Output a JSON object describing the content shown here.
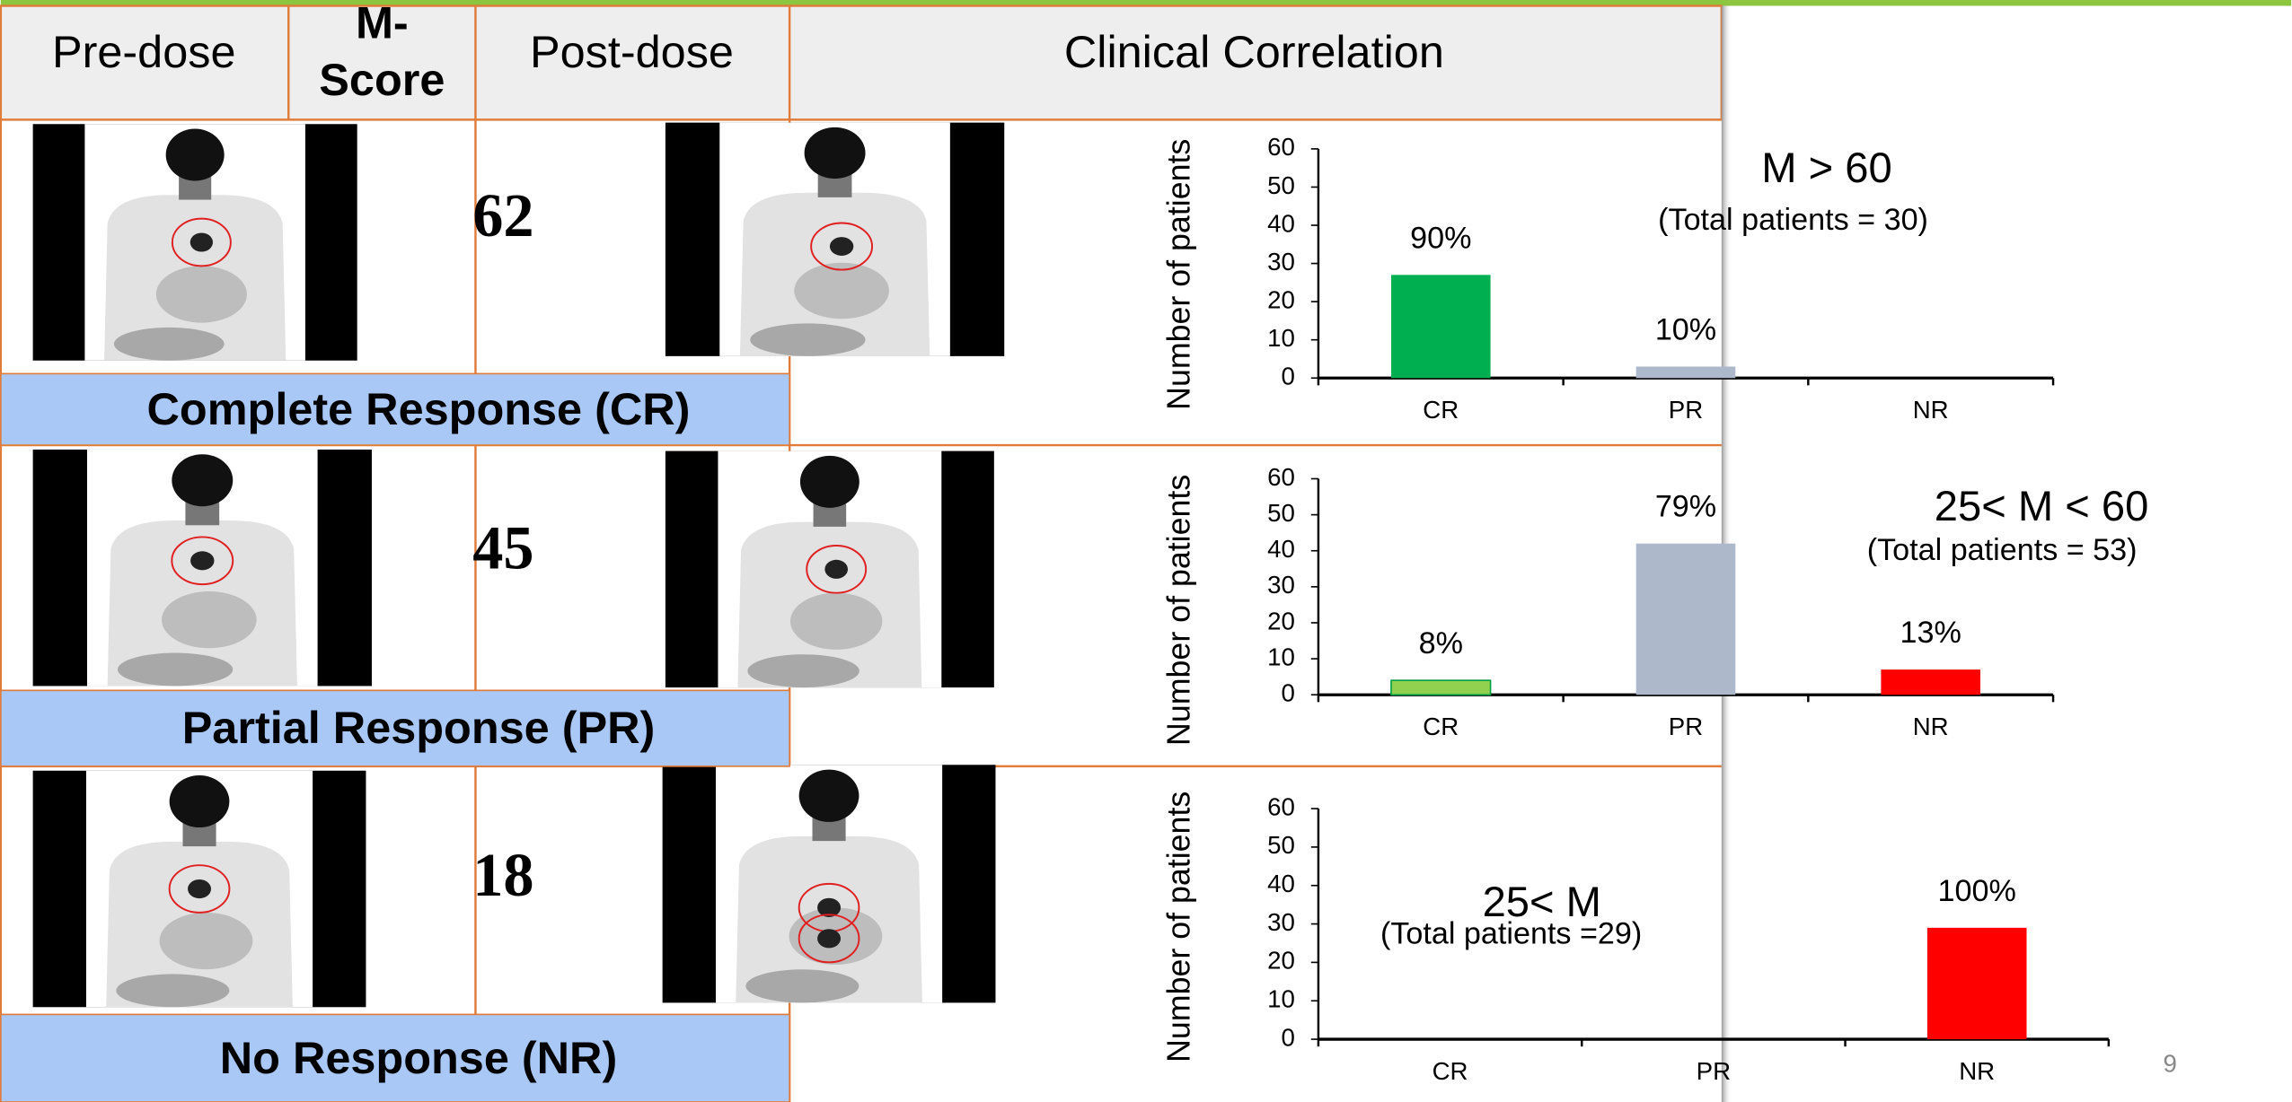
{
  "table": {
    "header": [
      "Pre-dose",
      [
        "M-",
        "Score"
      ],
      "Post-dose",
      "Clinical Correlation"
    ],
    "rows": [
      {
        "m_score": 62,
        "response": "Complete Response (CR)"
      },
      {
        "m_score": 45,
        "response": "Partial Response (PR)"
      },
      {
        "m_score": 18,
        "response": "No Response (NR)"
      }
    ]
  },
  "chart_data": [
    {
      "type": "bar",
      "y_label": "Number of patients",
      "annotation": "M > 60",
      "subannotation": "(Total patients = 30)",
      "categories": [
        "CR",
        "PR",
        "NR"
      ],
      "values": [
        27,
        3,
        0
      ],
      "value_labels": [
        "90%",
        "10%",
        null
      ],
      "colors": [
        "#00b050",
        "#adb9ca",
        "#ff0000"
      ],
      "ylim": [
        0,
        60
      ],
      "yticks": [
        0,
        10,
        20,
        30,
        40,
        50,
        60
      ]
    },
    {
      "type": "bar",
      "y_label": "Number of patients",
      "annotation": "25< M < 60",
      "subannotation": "(Total patients = 53)",
      "categories": [
        "CR",
        "PR",
        "NR"
      ],
      "values": [
        4,
        42,
        7
      ],
      "value_labels": [
        "8%",
        "79%",
        "13%"
      ],
      "colors": [
        "#92d050",
        "#adb9ca",
        "#ff0000"
      ],
      "ylim": [
        0,
        60
      ],
      "yticks": [
        0,
        10,
        20,
        30,
        40,
        50,
        60
      ]
    },
    {
      "type": "bar",
      "y_label": "Number of patients",
      "annotation": "25< M",
      "subannotation": "(Total patients =29)",
      "categories": [
        "CR",
        "PR",
        "NR"
      ],
      "values": [
        0,
        0,
        29
      ],
      "value_labels": [
        null,
        null,
        "100%"
      ],
      "colors": [
        "#92d050",
        "#adb9ca",
        "#ff0000"
      ],
      "ylim": [
        0,
        60
      ],
      "yticks": [
        0,
        10,
        20,
        30,
        40,
        50,
        60
      ]
    }
  ],
  "page_number": "9"
}
